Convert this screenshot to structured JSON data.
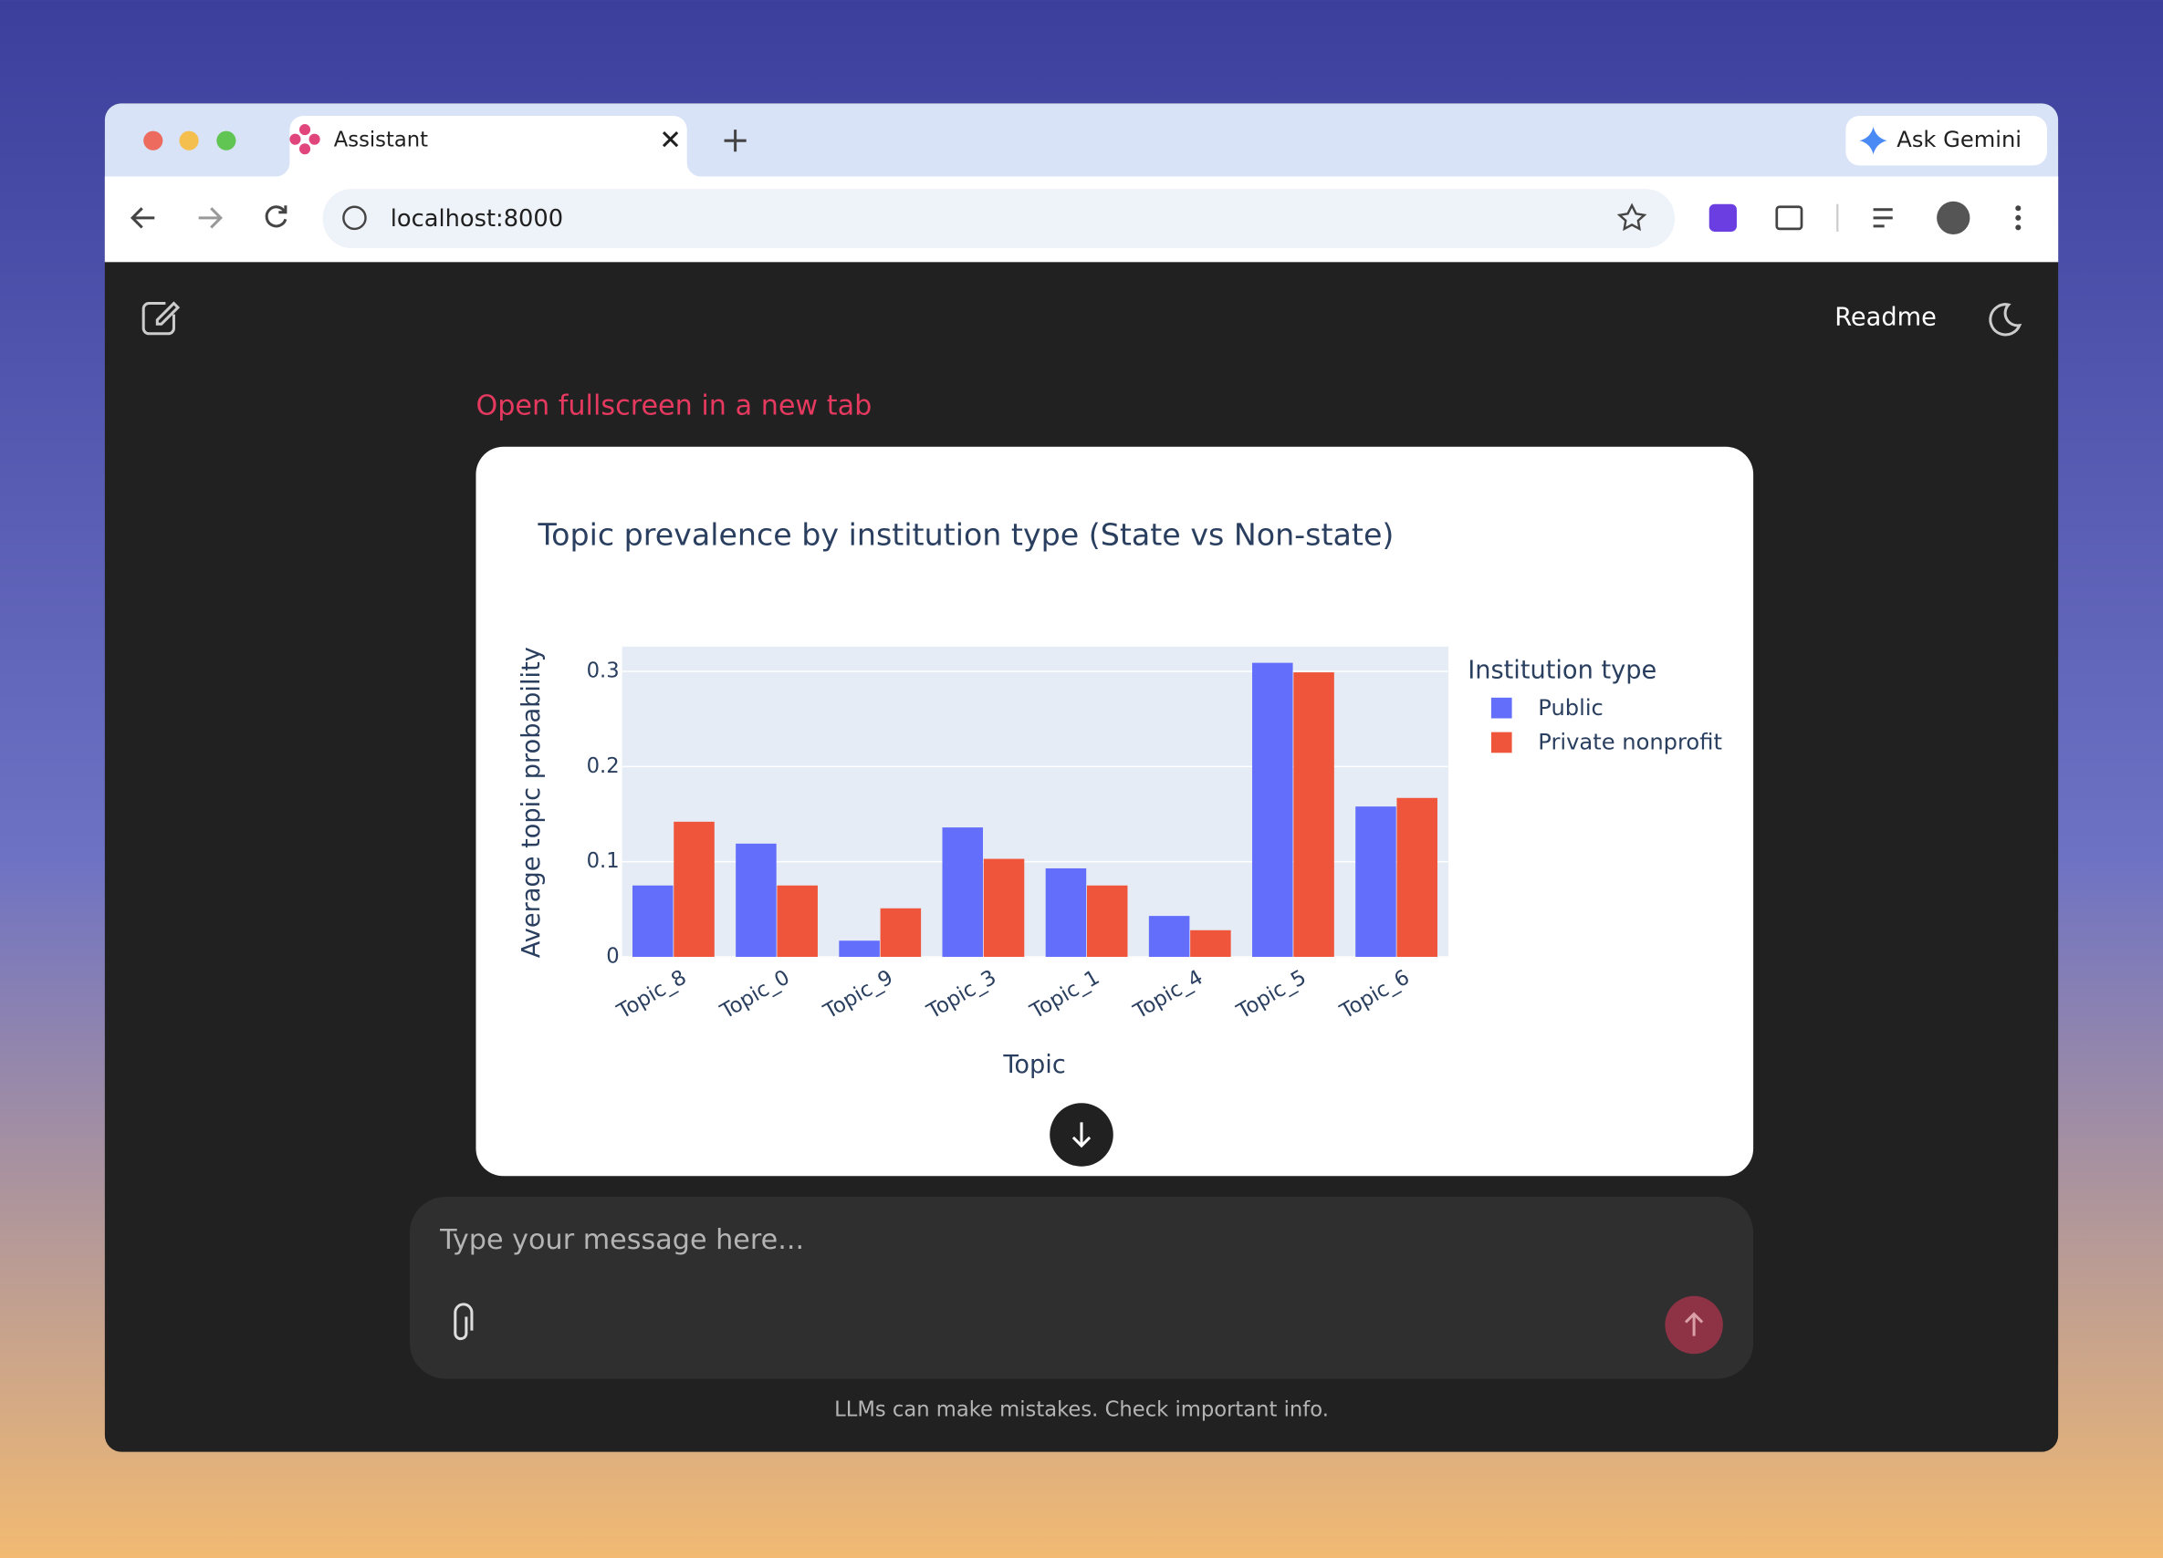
{
  "browser": {
    "tab_title": "Assistant",
    "url": "localhost:8000",
    "gemini_button": "Ask Gemini"
  },
  "app": {
    "readme": "Readme",
    "fullscreen_link": "Open fullscreen in a new tab",
    "input_placeholder": "Type your message here...",
    "footer": "LLMs can make mistakes. Check important info."
  },
  "chart_data": {
    "type": "bar",
    "title": "Topic prevalence by institution type (State vs Non-state)",
    "x_label": "Topic",
    "y_label": "Average topic probability",
    "categories": [
      "Topic_8",
      "Topic_0",
      "Topic_9",
      "Topic_3",
      "Topic_1",
      "Topic_4",
      "Topic_5",
      "Topic_6"
    ],
    "series": [
      {
        "name": "Public",
        "color": "#636efa",
        "values": [
          0.075,
          0.119,
          0.017,
          0.136,
          0.093,
          0.043,
          0.309,
          0.158
        ]
      },
      {
        "name": "Private nonprofit",
        "color": "#ef553b",
        "values": [
          0.142,
          0.075,
          0.051,
          0.103,
          0.075,
          0.028,
          0.299,
          0.167
        ]
      }
    ],
    "legend_title": "Institution type",
    "legend": "right",
    "ylim": [
      0,
      0.326
    ],
    "yticks": [
      0,
      0.1,
      0.2,
      0.3
    ],
    "grid": true
  }
}
